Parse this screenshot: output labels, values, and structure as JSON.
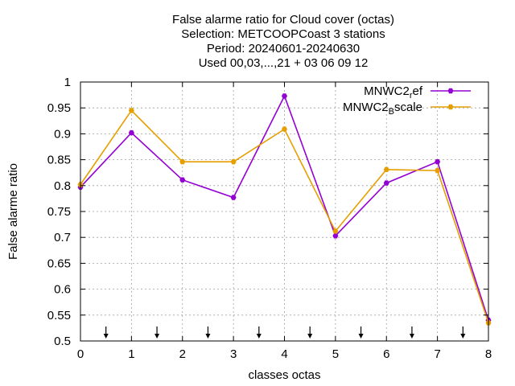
{
  "chart_data": {
    "type": "line",
    "title": [
      "False alarme ratio  for Cloud cover (octas)",
      "Selection: METCOOPCoast      3 stations",
      "Period: 20240601-20240630",
      "Used 00,03,...,21 + 03 06 09 12"
    ],
    "xlabel": "classes octas",
    "ylabel": "False alarme ratio",
    "xlim": [
      0,
      8
    ],
    "ylim": [
      0.5,
      1.0
    ],
    "x_ticks": [
      "0",
      "1",
      "2",
      "3",
      "4",
      "5",
      "6",
      "7",
      "8"
    ],
    "y_ticks": [
      "0.5",
      "0.55",
      "0.6",
      "0.65",
      "0.7",
      "0.75",
      "0.8",
      "0.85",
      "0.9",
      "0.95",
      "1"
    ],
    "grid": true,
    "legend_position": "top-right",
    "x": [
      0,
      1,
      2,
      3,
      4,
      5,
      6,
      7,
      8
    ],
    "series": [
      {
        "name": "MNWC2_ref",
        "legend_main": "MNWC2",
        "legend_sub": "r",
        "legend_rest": "ef",
        "color": "#9400d3",
        "values": [
          0.797,
          0.902,
          0.811,
          0.777,
          0.973,
          0.703,
          0.805,
          0.846,
          0.54
        ]
      },
      {
        "name": "MNWC2_Bscale",
        "legend_main": "MNWC2",
        "legend_sub": "B",
        "legend_rest": "scale",
        "color": "#e69f00",
        "values": [
          0.802,
          0.945,
          0.846,
          0.846,
          0.909,
          0.712,
          0.831,
          0.829,
          0.535
        ]
      }
    ],
    "arrow_markers_x": [
      0.5,
      1.5,
      2.5,
      3.5,
      4.5,
      5.5,
      6.5,
      7.5
    ]
  }
}
